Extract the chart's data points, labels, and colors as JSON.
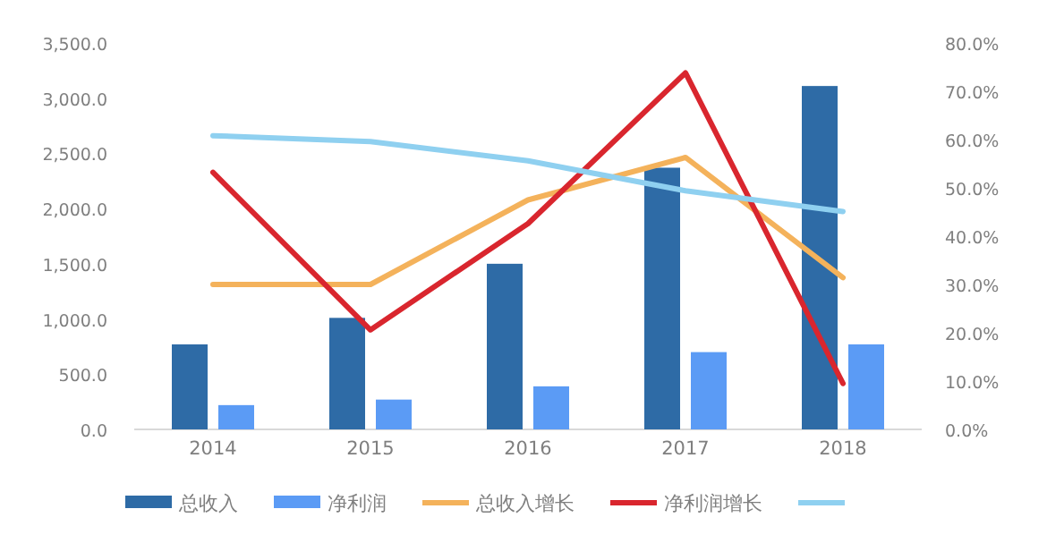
{
  "chart_data": {
    "type": "bar",
    "categories": [
      "2014",
      "2015",
      "2016",
      "2017",
      "2018"
    ],
    "series": [
      {
        "name": "总收入",
        "color": "#2e6ba6",
        "values": [
          770,
          1010,
          1500,
          2370,
          3110
        ]
      },
      {
        "name": "净利润",
        "color": "#5b9bf5",
        "values": [
          220,
          270,
          390,
          700,
          770
        ]
      },
      {
        "name": "总收入增长",
        "type": "line",
        "axis": "y2",
        "color": "#f4b25b",
        "values": [
          30.0,
          30.0,
          47.5,
          56.3,
          31.4
        ]
      },
      {
        "name": "净利润增长",
        "type": "line",
        "axis": "y2",
        "color": "#d9262e",
        "values": [
          53.2,
          20.6,
          42.6,
          73.8,
          9.5
        ]
      },
      {
        "type": "line",
        "axis": "y2",
        "color": "#8fd0f0",
        "values": [
          60.8,
          59.6,
          55.6,
          49.4,
          45.1
        ]
      }
    ],
    "ylim": [
      0,
      3500
    ],
    "yticks": [
      {
        "value": 0,
        "label": "0.0"
      },
      {
        "value": 500,
        "label": "500.0"
      },
      {
        "value": 1000,
        "label": "1,000.0"
      },
      {
        "value": 1500,
        "label": "1,500.0"
      },
      {
        "value": 2000,
        "label": "2,000.0"
      },
      {
        "value": 2500,
        "label": "2,500.0"
      },
      {
        "value": 3000,
        "label": "3,000.0"
      },
      {
        "value": 3500,
        "label": "3,500.0"
      }
    ],
    "y2lim": [
      0,
      80
    ],
    "y2ticks": [
      {
        "value": 0,
        "label": "0.0%"
      },
      {
        "value": 10,
        "label": "10.0%"
      },
      {
        "value": 20,
        "label": "20.0%"
      },
      {
        "value": 30,
        "label": "30.0%"
      },
      {
        "value": 40,
        "label": "40.0%"
      },
      {
        "value": 50,
        "label": "50.0%"
      },
      {
        "value": 60,
        "label": "60.0%"
      },
      {
        "value": 70,
        "label": "70.0%"
      },
      {
        "value": 80,
        "label": "80.0%"
      }
    ],
    "legend": "bottom",
    "grid": false
  }
}
